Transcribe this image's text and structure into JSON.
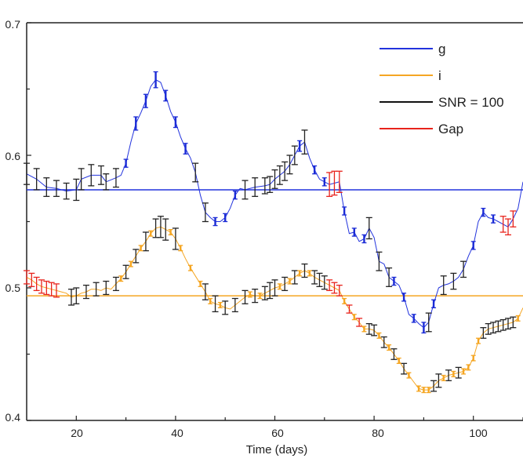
{
  "chart_data": {
    "type": "line",
    "title": "",
    "xlabel": "Time (days)",
    "ylabel": "",
    "xlim": [
      10,
      110
    ],
    "ylim": [
      0.4,
      0.7
    ],
    "xticks": [
      20,
      40,
      60,
      80,
      100
    ],
    "xtick_labels": [
      "20",
      "40",
      "60",
      "80",
      "100"
    ],
    "yticks": [
      0.4,
      0.5,
      0.6,
      0.7
    ],
    "ytick_labels": [
      "0.4",
      "0.5",
      "0.6",
      "0.7"
    ],
    "legend_position": "top-right",
    "legend": [
      {
        "label": "g",
        "color": "#2233dd"
      },
      {
        "label": "i",
        "color": "#f5a623"
      },
      {
        "label": "SNR = 100",
        "color": "#111111"
      },
      {
        "label": "Gap",
        "color": "#e8231c"
      }
    ],
    "reference_lines": [
      {
        "series": "g",
        "y": 0.574,
        "color": "#2233dd"
      },
      {
        "series": "i",
        "y": 0.494,
        "color": "#f5a623"
      }
    ],
    "series": [
      {
        "name": "g",
        "color": "#2233dd",
        "x": [
          10,
          12,
          14,
          16,
          18,
          20,
          21,
          23,
          25,
          26,
          28,
          29,
          30,
          31,
          32,
          33,
          34,
          35,
          36,
          37,
          38,
          39,
          40,
          41,
          42,
          43,
          44,
          45,
          46,
          47,
          48,
          49,
          50,
          51,
          52,
          53,
          54,
          56,
          58,
          59,
          60,
          61,
          62,
          63,
          64,
          65,
          66,
          67,
          68,
          69,
          70,
          71,
          72,
          73,
          74,
          75,
          76,
          77,
          78,
          79,
          80,
          81,
          82,
          83,
          84,
          85,
          86,
          87,
          88,
          89,
          90,
          91,
          92,
          93,
          94,
          95,
          96,
          97,
          98,
          99,
          100,
          101,
          102,
          103,
          104,
          105,
          106,
          107,
          108,
          109,
          110
        ],
        "y": [
          0.586,
          0.582,
          0.576,
          0.575,
          0.573,
          0.574,
          0.582,
          0.585,
          0.585,
          0.58,
          0.583,
          0.585,
          0.594,
          0.61,
          0.624,
          0.632,
          0.641,
          0.652,
          0.657,
          0.655,
          0.645,
          0.633,
          0.625,
          0.614,
          0.605,
          0.598,
          0.587,
          0.57,
          0.557,
          0.553,
          0.55,
          0.55,
          0.553,
          0.56,
          0.57,
          0.575,
          0.574,
          0.576,
          0.577,
          0.578,
          0.582,
          0.585,
          0.588,
          0.593,
          0.6,
          0.607,
          0.61,
          0.598,
          0.589,
          0.582,
          0.58,
          0.578,
          0.579,
          0.58,
          0.558,
          0.541,
          0.542,
          0.535,
          0.537,
          0.545,
          0.538,
          0.52,
          0.518,
          0.508,
          0.505,
          0.502,
          0.493,
          0.48,
          0.477,
          0.473,
          0.47,
          0.474,
          0.488,
          0.5,
          0.502,
          0.503,
          0.505,
          0.508,
          0.514,
          0.524,
          0.532,
          0.55,
          0.557,
          0.553,
          0.552,
          0.55,
          0.548,
          0.546,
          0.552,
          0.56,
          0.58
        ]
      },
      {
        "name": "i",
        "color": "#f5a623",
        "x": [
          10,
          11,
          12,
          13,
          14,
          15,
          16,
          17,
          18,
          19,
          20,
          21,
          22,
          23,
          24,
          25,
          26,
          27,
          28,
          29,
          30,
          31,
          32,
          33,
          34,
          35,
          36,
          37,
          38,
          39,
          40,
          41,
          42,
          43,
          44,
          45,
          46,
          47,
          48,
          49,
          50,
          51,
          52,
          53,
          54,
          55,
          56,
          57,
          58,
          59,
          60,
          61,
          62,
          63,
          64,
          65,
          66,
          67,
          68,
          69,
          70,
          71,
          72,
          73,
          74,
          75,
          76,
          77,
          78,
          79,
          80,
          81,
          82,
          83,
          84,
          85,
          86,
          87,
          88,
          89,
          90,
          91,
          92,
          93,
          94,
          95,
          96,
          97,
          98,
          99,
          100,
          101,
          102,
          103,
          104,
          105,
          106,
          107,
          108,
          109,
          110
        ],
        "y": [
          0.508,
          0.506,
          0.503,
          0.501,
          0.5,
          0.499,
          0.498,
          0.497,
          0.496,
          0.493,
          0.494,
          0.496,
          0.497,
          0.499,
          0.499,
          0.498,
          0.5,
          0.499,
          0.503,
          0.507,
          0.512,
          0.518,
          0.524,
          0.53,
          0.535,
          0.541,
          0.545,
          0.546,
          0.544,
          0.542,
          0.537,
          0.53,
          0.522,
          0.515,
          0.509,
          0.503,
          0.497,
          0.49,
          0.488,
          0.487,
          0.485,
          0.484,
          0.487,
          0.49,
          0.493,
          0.495,
          0.494,
          0.494,
          0.496,
          0.498,
          0.5,
          0.501,
          0.503,
          0.505,
          0.508,
          0.511,
          0.513,
          0.511,
          0.508,
          0.506,
          0.504,
          0.502,
          0.5,
          0.498,
          0.49,
          0.484,
          0.478,
          0.474,
          0.469,
          0.469,
          0.468,
          0.464,
          0.459,
          0.455,
          0.45,
          0.445,
          0.439,
          0.434,
          0.429,
          0.424,
          0.423,
          0.423,
          0.426,
          0.43,
          0.432,
          0.434,
          0.435,
          0.436,
          0.437,
          0.44,
          0.447,
          0.46,
          0.466,
          0.469,
          0.47,
          0.471,
          0.472,
          0.473,
          0.474,
          0.477,
          0.485
        ]
      }
    ],
    "errorbars": [
      {
        "series": "g",
        "color": "black",
        "x": [
          10,
          12,
          14,
          16,
          18,
          20,
          21,
          23,
          25,
          26,
          28,
          44,
          46,
          54,
          56,
          58,
          59,
          60,
          61,
          62,
          63,
          64,
          66,
          79,
          81,
          83,
          91,
          94,
          96,
          98
        ],
        "err": [
          0.008,
          0.008,
          0.007,
          0.006,
          0.006,
          0.008,
          0.008,
          0.008,
          0.007,
          0.006,
          0.007,
          0.007,
          0.007,
          0.007,
          0.007,
          0.006,
          0.006,
          0.007,
          0.007,
          0.007,
          0.007,
          0.007,
          0.009,
          0.008,
          0.007,
          0.007,
          0.007,
          0.007,
          0.006,
          0.006
        ]
      },
      {
        "series": "g",
        "color": "red",
        "x": [
          71,
          72,
          73,
          106,
          107,
          108
        ],
        "err": [
          0.009,
          0.009,
          0.008,
          0.006,
          0.006,
          0.006
        ]
      },
      {
        "series": "g",
        "color": "blue",
        "x": [
          30,
          32,
          34,
          36,
          38,
          40,
          42,
          48,
          50,
          52,
          65,
          68,
          70,
          74,
          76,
          78,
          84,
          86,
          88,
          90,
          92,
          100,
          102,
          104
        ],
        "err": [
          0.003,
          0.005,
          0.005,
          0.006,
          0.004,
          0.004,
          0.004,
          0.003,
          0.003,
          0.003,
          0.004,
          0.003,
          0.003,
          0.003,
          0.003,
          0.003,
          0.003,
          0.003,
          0.003,
          0.004,
          0.003,
          0.003,
          0.003,
          0.003
        ]
      },
      {
        "series": "i",
        "color": "black",
        "x": [
          19,
          20,
          22,
          24,
          26,
          28,
          30,
          32,
          34,
          36,
          37,
          38,
          40,
          46,
          48,
          50,
          52,
          54,
          56,
          58,
          59,
          60,
          62,
          64,
          66,
          68,
          69,
          70,
          79,
          80,
          82,
          84,
          86,
          92,
          93,
          95,
          97,
          102,
          103,
          104,
          105,
          106,
          107,
          108
        ],
        "err": [
          0.006,
          0.006,
          0.005,
          0.005,
          0.005,
          0.005,
          0.005,
          0.005,
          0.007,
          0.007,
          0.008,
          0.008,
          0.008,
          0.006,
          0.006,
          0.005,
          0.005,
          0.005,
          0.005,
          0.005,
          0.006,
          0.006,
          0.005,
          0.005,
          0.005,
          0.005,
          0.005,
          0.005,
          0.004,
          0.004,
          0.004,
          0.004,
          0.004,
          0.004,
          0.005,
          0.004,
          0.004,
          0.004,
          0.004,
          0.004,
          0.004,
          0.004,
          0.004,
          0.004
        ]
      },
      {
        "series": "i",
        "color": "red",
        "x": [
          10,
          11,
          12,
          13,
          14,
          15,
          16,
          71,
          72,
          73,
          75,
          77
        ],
        "err": [
          0.005,
          0.005,
          0.005,
          0.005,
          0.005,
          0.005,
          0.005,
          0.004,
          0.004,
          0.004,
          0.003,
          0.003
        ]
      },
      {
        "series": "i",
        "color": "orange",
        "x": [
          29,
          31,
          33,
          35,
          39,
          41,
          43,
          45,
          47,
          49,
          55,
          57,
          61,
          63,
          65,
          67,
          74,
          76,
          78,
          81,
          83,
          85,
          87,
          89,
          90,
          91,
          94,
          96,
          98,
          99,
          100,
          101,
          109,
          110
        ],
        "err": [
          0.002,
          0.002,
          0.002,
          0.002,
          0.002,
          0.002,
          0.002,
          0.002,
          0.002,
          0.002,
          0.002,
          0.002,
          0.002,
          0.002,
          0.002,
          0.002,
          0.002,
          0.002,
          0.002,
          0.002,
          0.002,
          0.002,
          0.002,
          0.002,
          0.002,
          0.002,
          0.002,
          0.002,
          0.002,
          0.002,
          0.002,
          0.002,
          0.002,
          0.002
        ]
      }
    ]
  }
}
